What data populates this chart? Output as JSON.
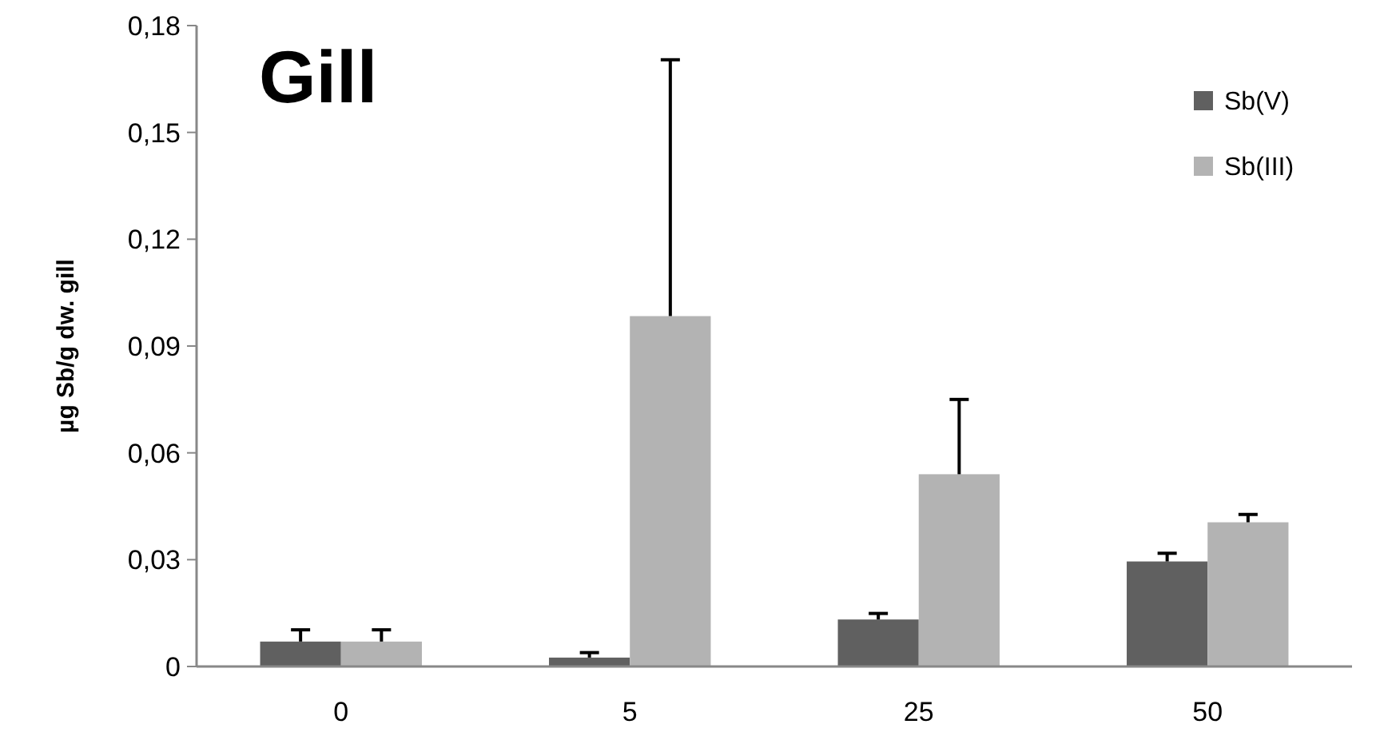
{
  "chart_data": {
    "type": "bar",
    "title": "Gill",
    "ylabel": "µg Sb/g dw. gill",
    "categories": [
      "0",
      "5",
      "25",
      "50"
    ],
    "series": [
      {
        "name": "Sb(V)",
        "color": "#606060",
        "values": [
          0.007,
          0.0025,
          0.0132,
          0.0295
        ],
        "errors": [
          0.0033,
          0.0014,
          0.0017,
          0.0023
        ]
      },
      {
        "name": "Sb(III)",
        "color": "#b3b3b3",
        "values": [
          0.007,
          0.0984,
          0.054,
          0.0405
        ],
        "errors": [
          0.0033,
          0.072,
          0.021,
          0.0022
        ]
      }
    ],
    "ylim": [
      0,
      0.18
    ],
    "yticks": [
      {
        "value": 0,
        "label": "0"
      },
      {
        "value": 0.03,
        "label": "0,03"
      },
      {
        "value": 0.06,
        "label": "0,06"
      },
      {
        "value": 0.09,
        "label": "0,09"
      },
      {
        "value": 0.12,
        "label": "0,12"
      },
      {
        "value": 0.15,
        "label": "0,15"
      },
      {
        "value": 0.18,
        "label": "0,18"
      }
    ],
    "grid": false,
    "legend": "top right"
  }
}
